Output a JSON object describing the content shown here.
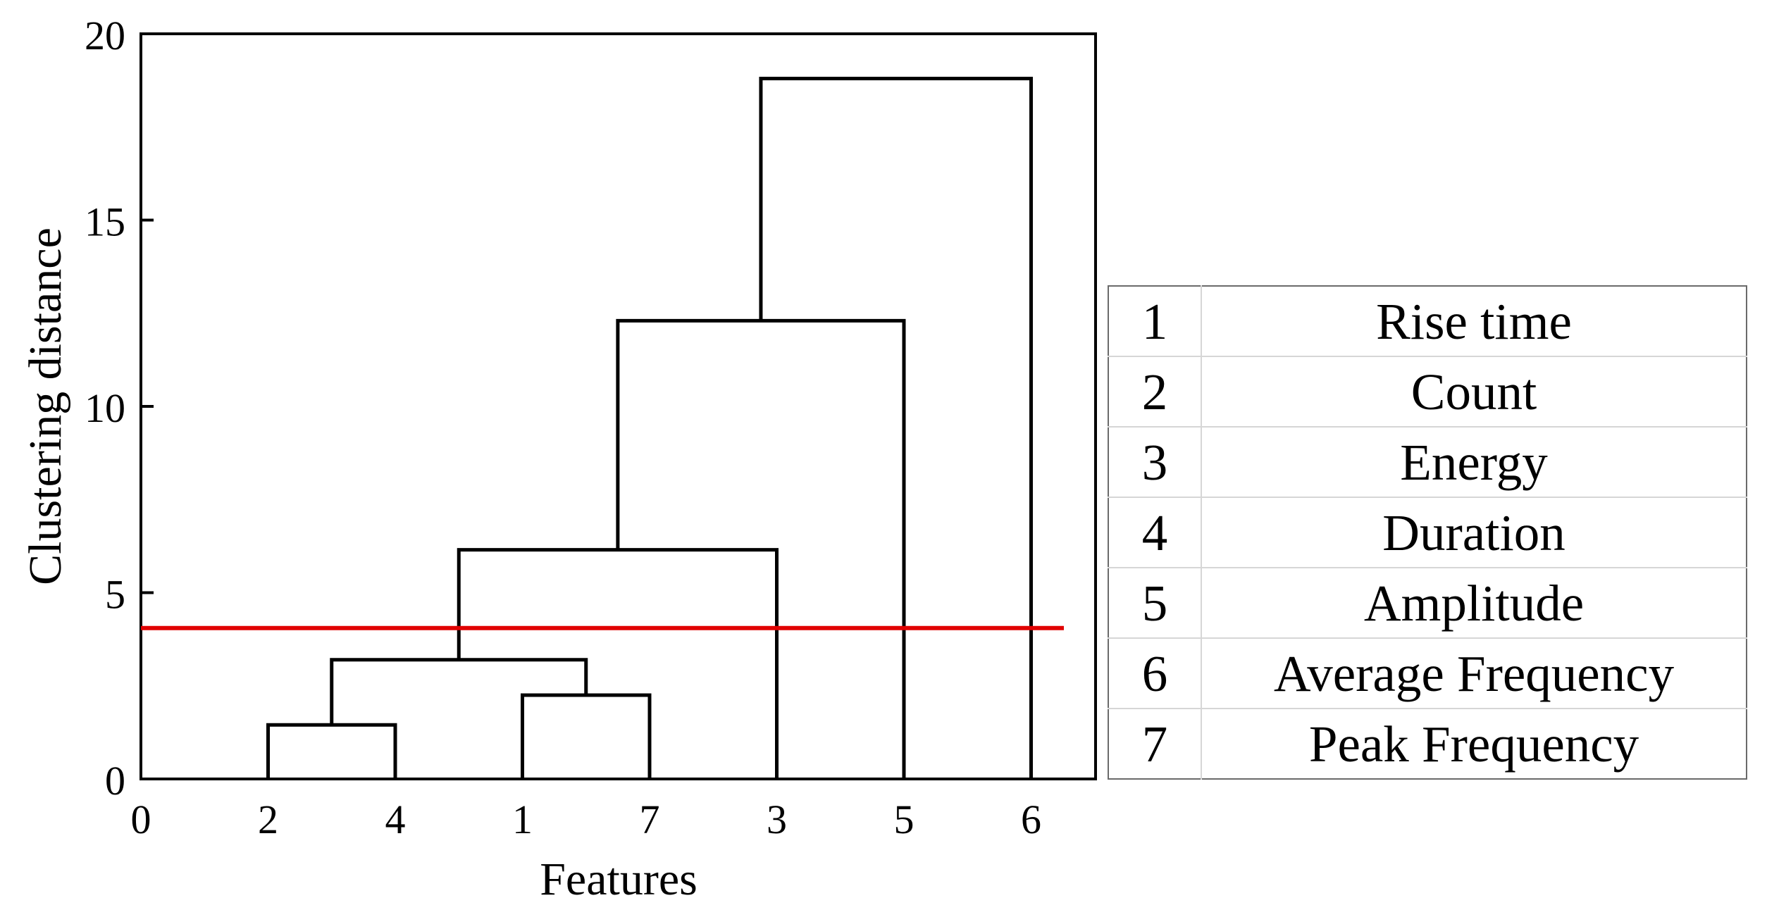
{
  "chart_data": {
    "type": "dendrogram",
    "xlabel": "Features",
    "ylabel": "Clustering distance",
    "ylim": [
      0,
      20
    ],
    "yticks": [
      0,
      5,
      10,
      15,
      20
    ],
    "x_origin_label": "0",
    "leaf_order": [
      "2",
      "4",
      "1",
      "7",
      "3",
      "5",
      "6"
    ],
    "merges": [
      {
        "left": "2",
        "right": "4",
        "height": 1.45
      },
      {
        "left": "1",
        "right": "7",
        "height": 2.25
      },
      {
        "left": "(2,4)",
        "right": "(1,7)",
        "height": 3.2
      },
      {
        "left": "(2,4,1,7)",
        "right": "3",
        "height": 6.15
      },
      {
        "left": "(2,4,1,7,3)",
        "right": "5",
        "height": 12.3
      },
      {
        "left": "(2,4,1,7,3,5)",
        "right": "6",
        "height": 18.8
      }
    ],
    "threshold": {
      "value": 4.05,
      "color": "#e00000"
    },
    "grid": false,
    "line_color": "#000000"
  },
  "legend_table": {
    "rows": [
      {
        "id": "1",
        "name": "Rise time"
      },
      {
        "id": "2",
        "name": "Count"
      },
      {
        "id": "3",
        "name": "Energy"
      },
      {
        "id": "4",
        "name": "Duration"
      },
      {
        "id": "5",
        "name": "Amplitude"
      },
      {
        "id": "6",
        "name": "Average Frequency"
      },
      {
        "id": "7",
        "name": "Peak Frequency"
      }
    ]
  }
}
